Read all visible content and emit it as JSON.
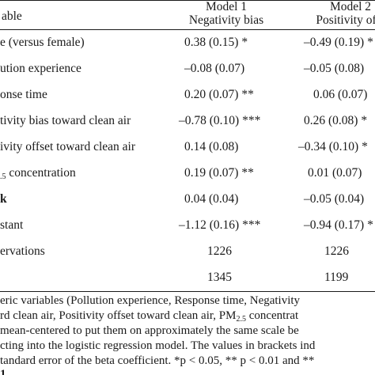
{
  "header": {
    "variable_label": "able",
    "model1_title": "Model 1",
    "model1_subtitle": "Negativity bias",
    "model2_title": "Model 2",
    "model2_subtitle": "Positivity offs"
  },
  "rows": [
    {
      "label": "e (versus female)",
      "m1": "0.38 (0.15) *",
      "m2": "–0.49 (0.19) *"
    },
    {
      "label": "ution experience",
      "m1": "–0.08 (0.07)",
      "m2": "–0.05 (0.08)"
    },
    {
      "label": "onse time",
      "m1": "0.20 (0.07) **",
      "m2": "0.06 (0.07)"
    },
    {
      "label": "tivity bias toward clean air",
      "m1": "–0.78 (0.10) ***",
      "m2": "0.26 (0.08) *"
    },
    {
      "label": "ivity offset toward clean air",
      "m1": "0.14 (0.08)",
      "m2": "–0.34 (0.10) *"
    },
    {
      "label_sub": ".5",
      "label_rest": " concentration",
      "m1": "0.19 (0.07) **",
      "m2": "0.01 (0.07)"
    },
    {
      "label": "k",
      "m1": "0.04 (0.04)",
      "m2": "–0.05 (0.04)"
    },
    {
      "label": "stant",
      "m1": "–1.12 (0.16) ***",
      "m2": "–0.94 (0.17) *"
    },
    {
      "label": "ervations",
      "m1": "1226",
      "m2": "1226"
    },
    {
      "label": "",
      "m1": "1345",
      "m2": "1199"
    }
  ],
  "notes": {
    "line1": "eric variables (Pollution experience, Response time, Negativity",
    "line2a": "rd clean air, Positivity offset toward clean air, PM",
    "line2_sub": "2.5",
    "line2b": " concentrat",
    "line3": " mean-centered to put them on approximately the same scale be",
    "line4": "cting into the logistic regression model. The values in brackets ind",
    "line5": "tandard error of the beta coefficient. *p < 0.05, ** p < 0.01 and **",
    "line6": "1."
  }
}
